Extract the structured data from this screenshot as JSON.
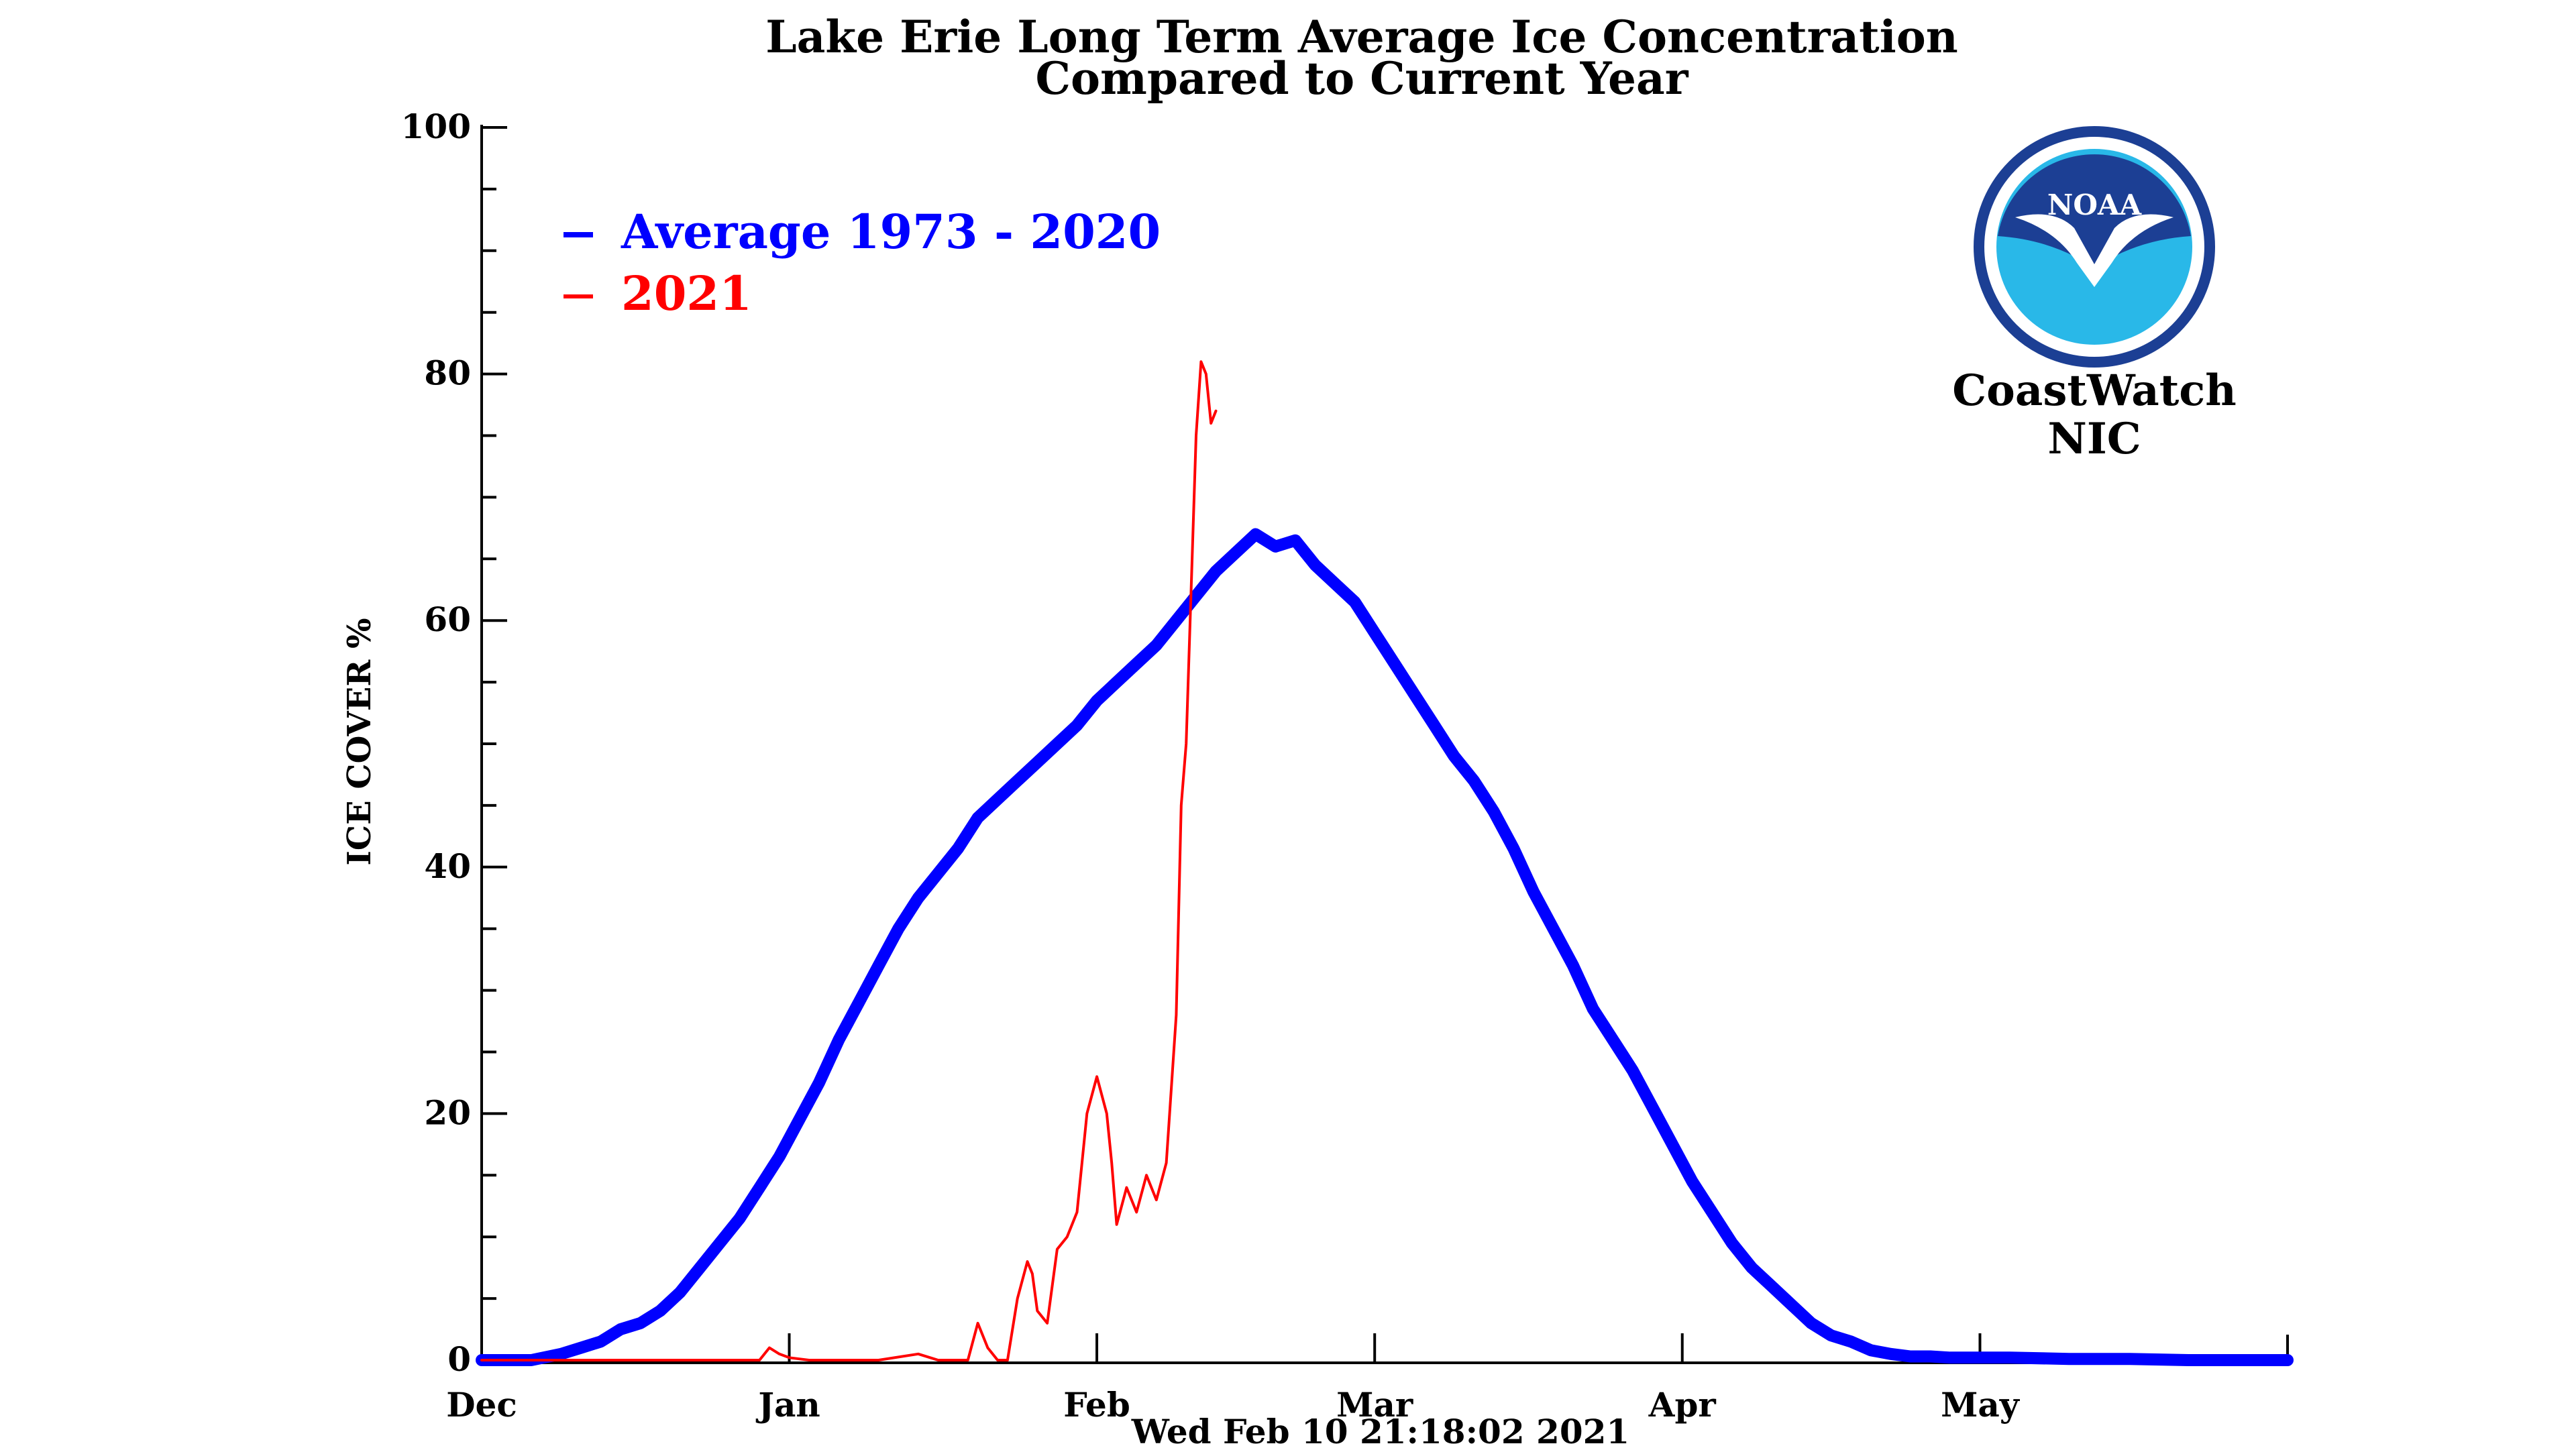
{
  "chart_data": {
    "type": "line",
    "title": "Lake Erie Long Term Average Ice Concentration",
    "subtitle": "Compared to Current Year",
    "ylabel": "ICE COVER %",
    "xlabel": "Wed Feb 10 21:18:02 2021",
    "ylim": [
      0,
      100
    ],
    "xlim": [
      0,
      182
    ],
    "y_ticks": [
      0,
      20,
      40,
      60,
      80,
      100
    ],
    "y_tick_labels": [
      "0",
      "20",
      "40",
      "60",
      "80",
      "100"
    ],
    "y_minor_step": 5,
    "x_ticks": [
      0,
      31,
      62,
      90,
      121,
      151
    ],
    "x_tick_labels": [
      "Dec",
      "Jan",
      "Feb",
      "Mar",
      "Apr",
      "May"
    ],
    "legend_location": "top-left",
    "legend": [
      {
        "label": "Average 1973 - 2020",
        "color": "#0000ff"
      },
      {
        "label": "2021",
        "color": "#ff0000"
      }
    ],
    "series": [
      {
        "name": "Average 1973 - 2020",
        "color": "#0000ff",
        "x": [
          0,
          5,
          8,
          10,
          12,
          14,
          16,
          18,
          20,
          22,
          24,
          26,
          28,
          30,
          32,
          34,
          36,
          38,
          40,
          42,
          44,
          46,
          48,
          50,
          52,
          54,
          56,
          58,
          60,
          62,
          64,
          66,
          68,
          70,
          72,
          74,
          76,
          78,
          80,
          82,
          84,
          86,
          88,
          90,
          92,
          94,
          96,
          98,
          100,
          102,
          104,
          106,
          108,
          110,
          112,
          114,
          116,
          118,
          120,
          122,
          124,
          126,
          128,
          130,
          132,
          134,
          136,
          138,
          140,
          142,
          144,
          146,
          148,
          150,
          154,
          160,
          166,
          172,
          176,
          182
        ],
        "values": [
          0,
          0,
          0.5,
          1,
          1.5,
          2.5,
          3,
          4,
          5.5,
          7.5,
          9.5,
          11.5,
          14,
          16.5,
          19.5,
          22.5,
          26,
          29,
          32,
          35,
          37.5,
          39.5,
          41.5,
          44,
          45.5,
          47,
          48.5,
          50,
          51.5,
          53.5,
          55,
          56.5,
          58,
          60,
          62,
          64,
          65.5,
          67,
          66,
          66.5,
          64.5,
          63,
          61.5,
          59,
          56.5,
          54,
          51.5,
          49,
          47,
          44.5,
          41.5,
          38,
          35,
          32,
          28.5,
          26,
          23.5,
          20.5,
          17.5,
          14.5,
          12,
          9.5,
          7.5,
          6,
          4.5,
          3,
          2,
          1.5,
          0.8,
          0.5,
          0.3,
          0.3,
          0.2,
          0.2,
          0.2,
          0.1,
          0.1,
          0,
          0,
          0
        ]
      },
      {
        "name": "2021",
        "color": "#ff0000",
        "x": [
          0,
          28,
          29,
          30,
          31,
          33,
          40,
          44,
          46,
          49,
          50,
          51,
          52,
          53,
          54,
          55,
          55.5,
          56,
          57,
          58,
          59,
          60,
          61,
          62,
          63,
          63.5,
          64,
          65,
          66,
          67,
          68,
          69,
          70,
          70.5,
          71,
          72,
          72.5,
          73,
          73.5,
          74
        ],
        "values": [
          0,
          0,
          1,
          0.5,
          0.2,
          0,
          0,
          0.5,
          0,
          0,
          3,
          1,
          0,
          0,
          5,
          8,
          7,
          4,
          3,
          9,
          10,
          12,
          20,
          23,
          20,
          16,
          11,
          14,
          12,
          15,
          13,
          16,
          28,
          45,
          50,
          75,
          81,
          80,
          76,
          77
        ]
      }
    ]
  },
  "logo": {
    "badge_text": "NOAA",
    "caption_line1": "CoastWatch",
    "caption_line2": "NIC",
    "color_dark": "#1c3f94",
    "color_light": "#29b8e8"
  }
}
